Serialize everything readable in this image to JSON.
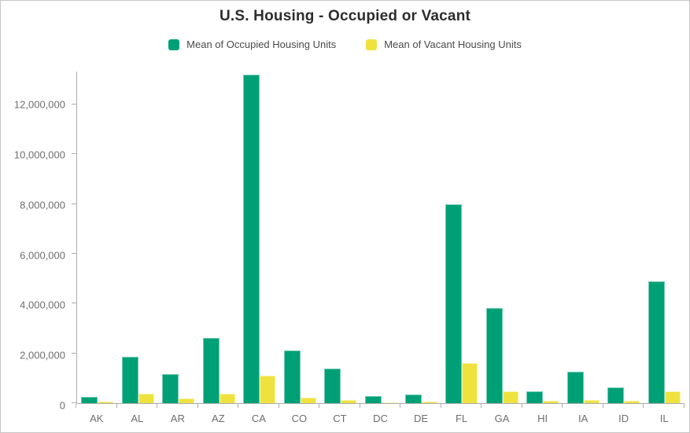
{
  "title": "U.S. Housing - Occupied or Vacant",
  "chart_data": {
    "type": "bar",
    "title": "U.S. Housing - Occupied or Vacant",
    "xlabel": "",
    "ylabel": "",
    "categories": [
      "AK",
      "AL",
      "AR",
      "AZ",
      "CA",
      "CO",
      "CT",
      "DC",
      "DE",
      "FL",
      "GA",
      "HI",
      "IA",
      "ID",
      "IL"
    ],
    "series": [
      {
        "name": "Mean of Occupied Housing Units",
        "color": "#00A077",
        "values": [
          250000,
          1870000,
          1150000,
          2600000,
          13100000,
          2100000,
          1370000,
          280000,
          350000,
          7930000,
          3810000,
          460000,
          1250000,
          640000,
          4850000
        ]
      },
      {
        "name": "Mean of Vacant Housing Units",
        "color": "#EFE23E",
        "values": [
          65000,
          380000,
          200000,
          390000,
          1090000,
          230000,
          120000,
          30000,
          60000,
          1600000,
          490000,
          85000,
          135000,
          95000,
          490000
        ]
      }
    ],
    "yticks": [
      0,
      2000000,
      4000000,
      6000000,
      8000000,
      10000000,
      12000000
    ],
    "ylim": [
      0,
      13320000
    ],
    "grid": false,
    "legend_position": "top",
    "axis_color": "#adadad",
    "label_color": "#6e6e6e"
  }
}
